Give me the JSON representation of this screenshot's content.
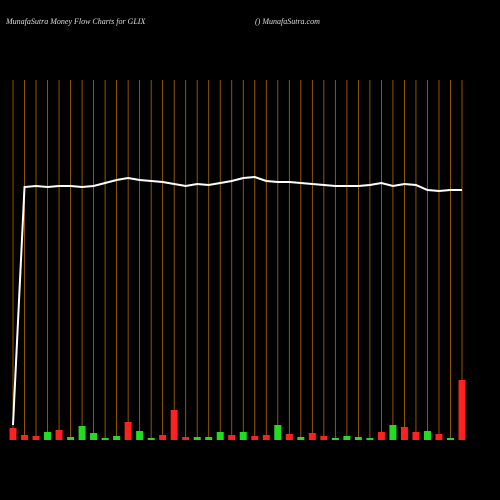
{
  "chart_data": {
    "type": "moneyflow",
    "title": "MunafaSutra  Money Flow  Charts for GLIX",
    "subtitle": "() MunafaSutra.com",
    "categories": [
      null,
      null,
      null,
      null,
      null,
      null,
      null,
      null,
      null,
      null,
      null,
      null,
      null,
      null,
      null,
      null,
      null,
      null,
      null,
      null,
      null,
      null,
      null,
      null,
      null,
      null,
      null,
      null,
      null,
      null,
      null,
      null,
      null,
      null,
      null,
      null,
      null,
      null,
      null,
      null
    ],
    "ylim": [
      0,
      500
    ],
    "y2lim": [
      0,
      440
    ],
    "series": [
      {
        "color": "#ffffff",
        "values": [
          75,
          313,
          314,
          313,
          314,
          314,
          313,
          314,
          317,
          320,
          322,
          320,
          319,
          318,
          316,
          314,
          316,
          315,
          317,
          319,
          322,
          323,
          319,
          318,
          318,
          317,
          316,
          315,
          314,
          314,
          314,
          315,
          317,
          314,
          316,
          315,
          310,
          309,
          310,
          310
        ]
      },
      {
        "axis": "y2",
        "colors": [
          "#ff2020",
          "#ff2020",
          "#ff2020",
          "#20dd20",
          "#ff2020",
          "#20dd20",
          "#20dd20",
          "#20dd20",
          "#20dd20",
          "#20dd20",
          "#ff2020",
          "#20dd20",
          "#20dd20",
          "#ff2020",
          "#ff2020",
          "#ff2020",
          "#20dd20",
          "#20dd20",
          "#20dd20",
          "#ff2020",
          "#20dd20",
          "#ff2020",
          "#ff2020",
          "#20dd20",
          "#ff2020",
          "#20dd20",
          "#ff2020",
          "#ff2020",
          "#20dd20",
          "#20dd20",
          "#20dd20",
          "#20dd20",
          "#ff2020",
          "#20dd20",
          "#ff2020",
          "#ff2020",
          "#20dd20",
          "#ff2020",
          "#20dd20",
          "#ff2020"
        ],
        "values": [
          12,
          5,
          4,
          8,
          10,
          3,
          14,
          7,
          2,
          4,
          18,
          9,
          2,
          5,
          30,
          3,
          3,
          3,
          8,
          5,
          8,
          4,
          5,
          15,
          6,
          3,
          7,
          4,
          2,
          4,
          3,
          2,
          8,
          15,
          13,
          8,
          9,
          6,
          2,
          60
        ]
      }
    ]
  }
}
